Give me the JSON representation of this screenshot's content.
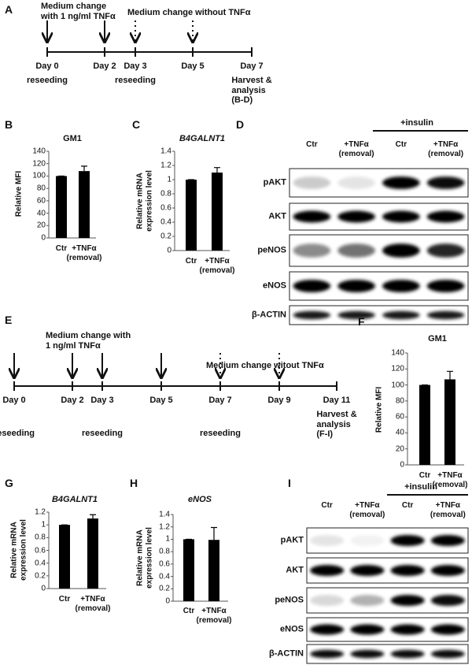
{
  "panel_labels": [
    "A",
    "B",
    "C",
    "D",
    "E",
    "F",
    "G",
    "H",
    "I"
  ],
  "timeline_a": {
    "pre_note": "Medium change\nwith 1 ng/ml TNFα",
    "post_note": "Medium change without TNFα",
    "days": [
      {
        "day": "Day 0",
        "note": "reseeding"
      },
      {
        "day": "Day 2"
      },
      {
        "day": "Day 3",
        "note": "reseeding"
      },
      {
        "day": "Day 5"
      },
      {
        "day": "Day 7",
        "note": "Harvest &\nanalysis\n(B-D)"
      }
    ]
  },
  "timeline_e": {
    "pre_note": "Medium change with\n1 ng/ml TNFα",
    "post_note": "Medium change witout TNFα",
    "days": [
      {
        "day": "Day 0",
        "note": "reseeding"
      },
      {
        "day": "Day 2"
      },
      {
        "day": "Day 3",
        "note": "reseeding"
      },
      {
        "day": "Day 5"
      },
      {
        "day": "Day 7",
        "note": "reseeding"
      },
      {
        "day": "Day 9"
      },
      {
        "day": "Day 11",
        "note": "Harvest &\nanalysis\n(F-I)"
      }
    ]
  },
  "chart_data": [
    {
      "type": "bar",
      "title": "GM1",
      "y_label": "Relative MFI",
      "categories": [
        "Ctr",
        "+TNFα\n(removal)"
      ],
      "values": [
        100,
        108
      ],
      "errors": [
        0,
        8
      ],
      "color": "#000000",
      "ylim": [
        0,
        140
      ],
      "yticks": [
        0,
        20,
        40,
        60,
        80,
        100,
        120,
        140
      ]
    },
    {
      "type": "bar",
      "title": "B4GALNT1",
      "y_label": "Relative mRNA\nexpression level",
      "categories": [
        "Ctr",
        "+TNFα\n(removal)"
      ],
      "values": [
        1,
        1.1
      ],
      "errors": [
        0,
        0.07
      ],
      "color": "#000000",
      "ylim": [
        0,
        1.4
      ],
      "yticks": [
        0,
        0.2,
        0.4,
        0.6,
        0.8,
        1,
        1.2,
        1.4
      ]
    },
    {
      "type": "bar",
      "title": "GM1",
      "y_label": "Relative MFI",
      "categories": [
        "Ctr",
        "+TNFα\n(removal)"
      ],
      "values": [
        100,
        107
      ],
      "errors": [
        0,
        10
      ],
      "color": "#000000",
      "ylim": [
        0,
        140
      ],
      "yticks": [
        0,
        20,
        40,
        60,
        80,
        100,
        120,
        140
      ]
    },
    {
      "type": "bar",
      "title": "B4GALNT1",
      "y_label": "Relative mRNA\nexpression level",
      "categories": [
        "Ctr",
        "+TNFα\n(removal)"
      ],
      "values": [
        1,
        1.1
      ],
      "errors": [
        0,
        0.06
      ],
      "color": "#000000",
      "ylim": [
        0,
        1.2
      ],
      "yticks": [
        0,
        0.2,
        0.4,
        0.6,
        0.8,
        1,
        1.2
      ]
    },
    {
      "type": "bar",
      "title": "eNOS",
      "y_label": "Relative mRNA\nexpression level",
      "categories": [
        "Ctr",
        "+TNFα\n(removal)"
      ],
      "values": [
        1,
        0.99
      ],
      "errors": [
        0,
        0.2
      ],
      "color": "#000000",
      "ylim": [
        0,
        1.4
      ],
      "yticks": [
        0,
        0.2,
        0.4,
        0.6,
        0.8,
        1,
        1.2,
        1.4
      ]
    }
  ],
  "blot_d": {
    "group_label": "+insulin",
    "lanes": [
      "Ctr",
      "+TNFα\n(removal)",
      "Ctr",
      "+TNFα\n(removal)"
    ],
    "rows": [
      "pAKT",
      "AKT",
      "peNOS",
      "eNOS",
      "β-ACTIN"
    ]
  },
  "blot_i": {
    "group_label": "+insulin",
    "lanes": [
      "Ctr",
      "+TNFα\n(removal)",
      "Ctr",
      "+TNFα\n(removal)"
    ],
    "rows": [
      "pAKT",
      "AKT",
      "peNOS",
      "eNOS",
      "β-ACTIN"
    ]
  }
}
